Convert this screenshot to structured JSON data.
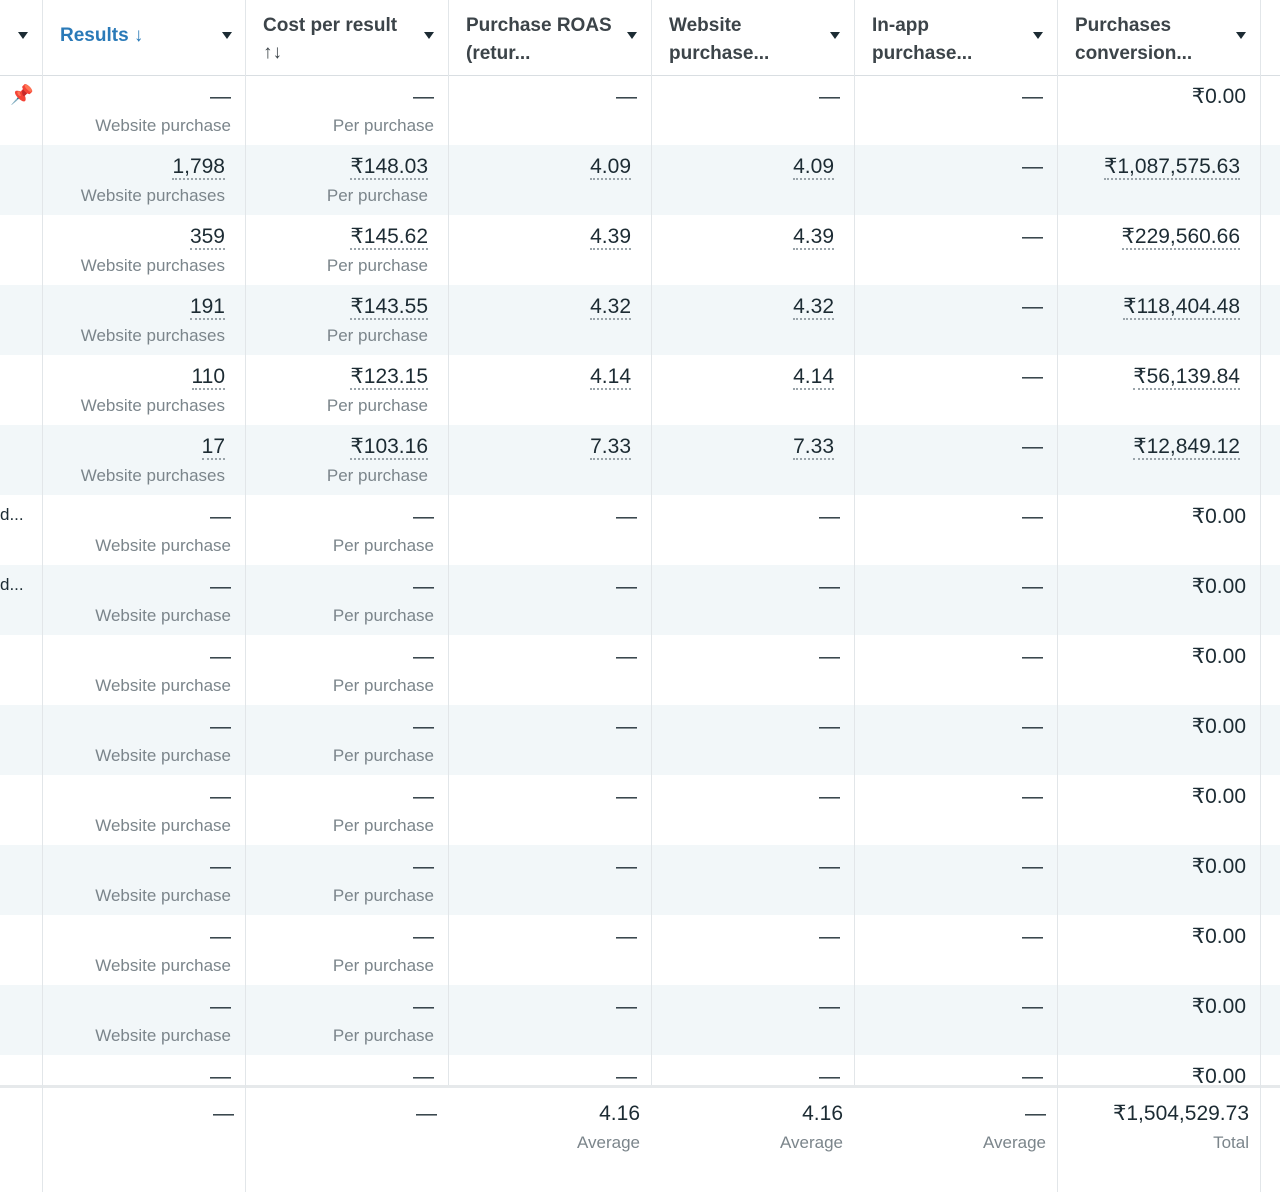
{
  "headers": [
    {
      "title": "Results",
      "sort_icon": "↓",
      "sortable_icon": "",
      "active": true
    },
    {
      "title": "Cost per result",
      "sort_icon": "",
      "sortable_icon": "↑↓",
      "active": false
    },
    {
      "title": "Purchase ROAS (retur...",
      "sort_icon": "",
      "sortable_icon": "",
      "active": false
    },
    {
      "title": "Website purchase...",
      "sort_icon": "",
      "sortable_icon": "",
      "active": false
    },
    {
      "title": "In-app purchase...",
      "sort_icon": "",
      "sortable_icon": "",
      "active": false
    },
    {
      "title": "Purchases conversion...",
      "sort_icon": "",
      "sortable_icon": "",
      "active": false
    }
  ],
  "accent_color": "#2a7ab8",
  "rows": [
    {
      "results": "—",
      "results_sub": "Website purchase",
      "cost": "—",
      "cost_sub": "Per purchase",
      "roas": "—",
      "website_roas": "—",
      "inapp": "—",
      "value": "₹0.00",
      "pinned": true,
      "stub": ""
    },
    {
      "results": "1,798",
      "results_sub": "Website purchases",
      "cost": "₹148.03",
      "cost_sub": "Per purchase",
      "roas": "4.09",
      "website_roas": "4.09",
      "inapp": "—",
      "value": "₹1,087,575.63",
      "pinned": false,
      "stub": ""
    },
    {
      "results": "359",
      "results_sub": "Website purchases",
      "cost": "₹145.62",
      "cost_sub": "Per purchase",
      "roas": "4.39",
      "website_roas": "4.39",
      "inapp": "—",
      "value": "₹229,560.66",
      "pinned": false,
      "stub": ""
    },
    {
      "results": "191",
      "results_sub": "Website purchases",
      "cost": "₹143.55",
      "cost_sub": "Per purchase",
      "roas": "4.32",
      "website_roas": "4.32",
      "inapp": "—",
      "value": "₹118,404.48",
      "pinned": false,
      "stub": ""
    },
    {
      "results": "110",
      "results_sub": "Website purchases",
      "cost": "₹123.15",
      "cost_sub": "Per purchase",
      "roas": "4.14",
      "website_roas": "4.14",
      "inapp": "—",
      "value": "₹56,139.84",
      "pinned": false,
      "stub": ""
    },
    {
      "results": "17",
      "results_sub": "Website purchases",
      "cost": "₹103.16",
      "cost_sub": "Per purchase",
      "roas": "7.33",
      "website_roas": "7.33",
      "inapp": "—",
      "value": "₹12,849.12",
      "pinned": false,
      "stub": ""
    },
    {
      "results": "—",
      "results_sub": "Website purchase",
      "cost": "—",
      "cost_sub": "Per purchase",
      "roas": "—",
      "website_roas": "—",
      "inapp": "—",
      "value": "₹0.00",
      "pinned": false,
      "stub": "d..."
    },
    {
      "results": "—",
      "results_sub": "Website purchase",
      "cost": "—",
      "cost_sub": "Per purchase",
      "roas": "—",
      "website_roas": "—",
      "inapp": "—",
      "value": "₹0.00",
      "pinned": false,
      "stub": "d..."
    },
    {
      "results": "—",
      "results_sub": "Website purchase",
      "cost": "—",
      "cost_sub": "Per purchase",
      "roas": "—",
      "website_roas": "—",
      "inapp": "—",
      "value": "₹0.00",
      "pinned": false,
      "stub": ""
    },
    {
      "results": "—",
      "results_sub": "Website purchase",
      "cost": "—",
      "cost_sub": "Per purchase",
      "roas": "—",
      "website_roas": "—",
      "inapp": "—",
      "value": "₹0.00",
      "pinned": false,
      "stub": ""
    },
    {
      "results": "—",
      "results_sub": "Website purchase",
      "cost": "—",
      "cost_sub": "Per purchase",
      "roas": "—",
      "website_roas": "—",
      "inapp": "—",
      "value": "₹0.00",
      "pinned": false,
      "stub": ""
    },
    {
      "results": "—",
      "results_sub": "Website purchase",
      "cost": "—",
      "cost_sub": "Per purchase",
      "roas": "—",
      "website_roas": "—",
      "inapp": "—",
      "value": "₹0.00",
      "pinned": false,
      "stub": ""
    },
    {
      "results": "—",
      "results_sub": "Website purchase",
      "cost": "—",
      "cost_sub": "Per purchase",
      "roas": "—",
      "website_roas": "—",
      "inapp": "—",
      "value": "₹0.00",
      "pinned": false,
      "stub": ""
    },
    {
      "results": "—",
      "results_sub": "Website purchase",
      "cost": "—",
      "cost_sub": "Per purchase",
      "roas": "—",
      "website_roas": "—",
      "inapp": "—",
      "value": "₹0.00",
      "pinned": false,
      "stub": ""
    },
    {
      "results": "—",
      "results_sub": "",
      "cost": "—",
      "cost_sub": "",
      "roas": "—",
      "website_roas": "—",
      "inapp": "—",
      "value": "₹0.00",
      "pinned": false,
      "stub": ""
    }
  ],
  "totals": {
    "results": "—",
    "cost": "—",
    "roas": "4.16",
    "roas_sub": "Average",
    "website_roas": "4.16",
    "website_roas_sub": "Average",
    "inapp": "—",
    "inapp_sub": "Average",
    "value": "₹1,504,529.73",
    "value_sub": "Total"
  }
}
